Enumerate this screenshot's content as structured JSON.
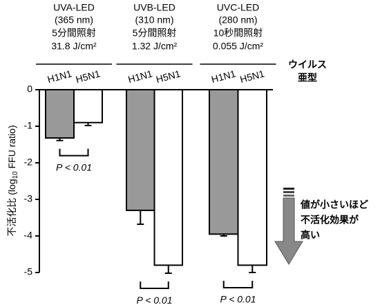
{
  "chart_data": {
    "type": "bar",
    "categories": [
      "UVA-LED",
      "UVB-LED",
      "UVC-LED"
    ],
    "category_details": [
      [
        "(365 nm)",
        "5分間照射",
        "31.8 J/cm²"
      ],
      [
        "(310 nm)",
        "5分間照射",
        "1.32 J/cm²"
      ],
      [
        "(280 nm)",
        "10秒間照射",
        "0.055 J/cm²"
      ]
    ],
    "legend_title": [
      "ウイルス",
      "亜型"
    ],
    "series": [
      {
        "name": "H1N1",
        "color": "#999999",
        "values": [
          -1.32,
          -3.3,
          -3.95
        ],
        "errors": [
          0.07,
          0.38,
          0.05
        ]
      },
      {
        "name": "H5N1",
        "color": "#ffffff",
        "values": [
          -0.9,
          -4.8,
          -4.8
        ],
        "errors": [
          0.08,
          0.22,
          0.2
        ]
      }
    ],
    "y_label": [
      "不活化比 (log",
      "10",
      " FFU ratio)"
    ],
    "ylim": [
      -5,
      0
    ],
    "yticks": [
      0,
      -1,
      -2,
      -3,
      -4,
      -5
    ],
    "annotations": [
      "P < 0.01",
      "P < 0.01",
      "P < 0.01"
    ],
    "arrow_note": [
      "値が小さいほど",
      "不活化効果が",
      "高い"
    ]
  }
}
